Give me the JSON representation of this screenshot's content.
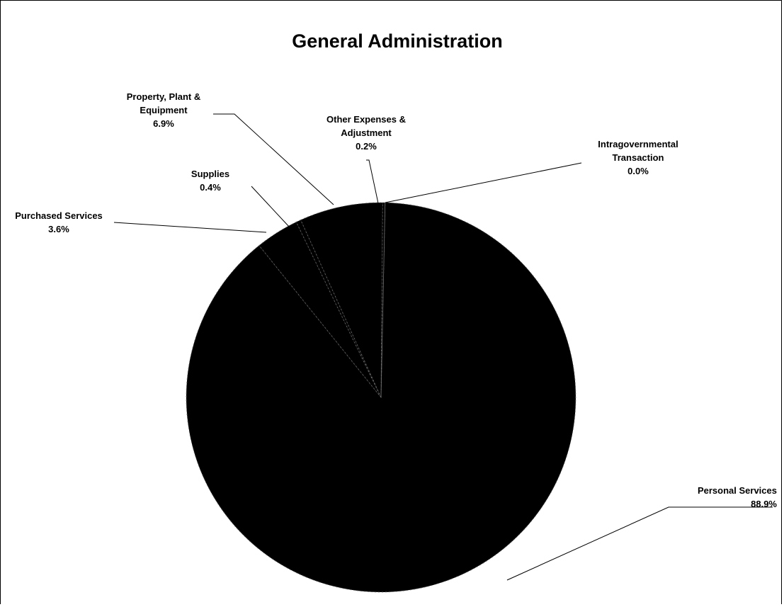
{
  "chart_data": {
    "type": "pie",
    "title": "General Administration",
    "slices": [
      {
        "label_lines": [
          "Personal Services"
        ],
        "percent_label": "88.9%",
        "value": 88.9
      },
      {
        "label_lines": [
          "Purchased Services"
        ],
        "percent_label": "3.6%",
        "value": 3.6
      },
      {
        "label_lines": [
          "Supplies"
        ],
        "percent_label": "0.4%",
        "value": 0.4
      },
      {
        "label_lines": [
          "Property, Plant &",
          "Equipment"
        ],
        "percent_label": "6.9%",
        "value": 6.9
      },
      {
        "label_lines": [
          "Other Expenses &",
          "Adjustment"
        ],
        "percent_label": "0.2%",
        "value": 0.2
      },
      {
        "label_lines": [
          "Intragovernmental",
          "Transaction"
        ],
        "percent_label": "0.0%",
        "value": 0.0
      }
    ],
    "colors": {
      "slice_fill": "#000000",
      "slice_edge": "#6e6e6e",
      "leader_line": "#000000",
      "background": "#ffffff"
    },
    "legend": "none"
  }
}
